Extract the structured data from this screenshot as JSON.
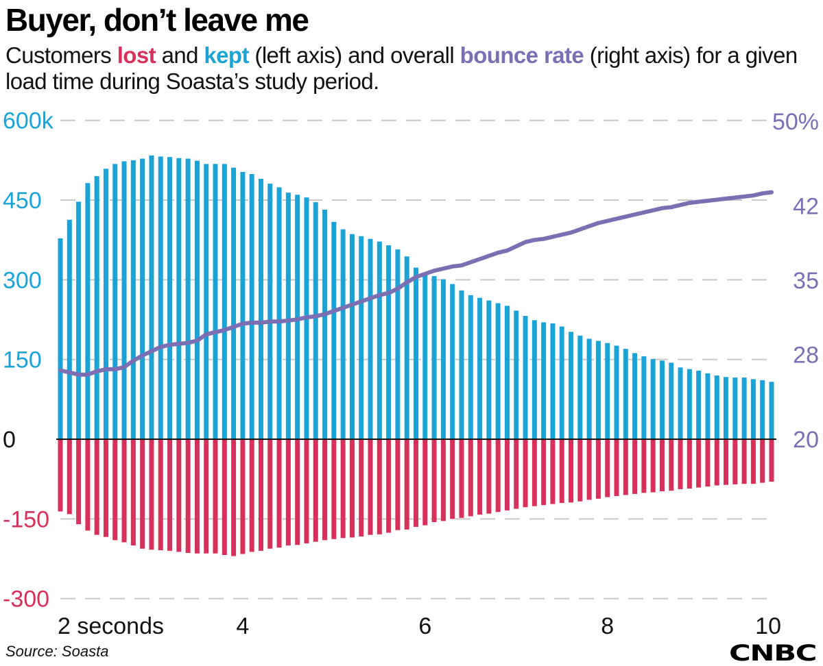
{
  "title": "Buyer, don’t leave me",
  "subtitle": {
    "p1": "Customers ",
    "lost": "lost",
    "p2": " and ",
    "kept": "kept",
    "p3": " (left axis) and overall ",
    "bounce": "bounce rate",
    "p4": " (right axis) for a given load time during Soasta’s study period."
  },
  "colors": {
    "kept": "#1aa3d4",
    "lost": "#d7305a",
    "bounce": "#7b6fb3",
    "left_axis_positive": "#1aa3d4",
    "left_axis_negative": "#d7305a"
  },
  "source": "Source: Soasta",
  "logo": "CNBC",
  "chart_data": {
    "type": "bar",
    "x_start": 2.0,
    "x_step": 0.1,
    "left_axis": {
      "ylim": [
        -300,
        600
      ],
      "ticks": [
        600,
        450,
        300,
        150,
        0,
        -150,
        -300
      ],
      "tick_labels": [
        "600k",
        "450",
        "300",
        "150",
        "0",
        "-150",
        "-300"
      ]
    },
    "right_axis": {
      "ylim": [
        20,
        50
      ],
      "ticks": [
        50,
        42,
        35,
        28,
        20
      ],
      "tick_labels": [
        "50%",
        "42",
        "35",
        "28",
        "20"
      ]
    },
    "x_axis": {
      "ticks": [
        2,
        4,
        6,
        8,
        10
      ],
      "tick_labels": [
        "2 seconds",
        "4",
        "6",
        "8",
        "10"
      ]
    },
    "grid": true,
    "series": [
      {
        "name": "kept",
        "axis": "left",
        "type": "bar",
        "values": [
          378,
          413,
          447,
          482,
          495,
          509,
          518,
          523,
          525,
          528,
          534,
          532,
          531,
          529,
          528,
          524,
          518,
          518,
          518,
          511,
          503,
          499,
          490,
          481,
          474,
          464,
          460,
          455,
          446,
          432,
          409,
          395,
          386,
          382,
          377,
          372,
          365,
          357,
          344,
          323,
          314,
          307,
          301,
          292,
          280,
          271,
          266,
          261,
          256,
          251,
          242,
          232,
          224,
          220,
          218,
          212,
          202,
          195,
          189,
          185,
          181,
          176,
          170,
          162,
          156,
          151,
          148,
          144,
          135,
          132,
          129,
          124,
          120,
          117,
          116,
          116,
          113,
          111,
          108
        ]
      },
      {
        "name": "lost",
        "axis": "left",
        "type": "bar",
        "values": [
          -136,
          -141,
          -160,
          -172,
          -180,
          -184,
          -190,
          -194,
          -200,
          -206,
          -208,
          -209,
          -210,
          -212,
          -214,
          -215,
          -215,
          -215,
          -218,
          -220,
          -216,
          -212,
          -210,
          -206,
          -204,
          -200,
          -199,
          -196,
          -193,
          -190,
          -188,
          -186,
          -185,
          -183,
          -180,
          -179,
          -176,
          -171,
          -170,
          -165,
          -162,
          -156,
          -154,
          -150,
          -148,
          -145,
          -142,
          -140,
          -137,
          -134,
          -131,
          -128,
          -126,
          -124,
          -122,
          -120,
          -119,
          -117,
          -114,
          -112,
          -109,
          -107,
          -105,
          -103,
          -101,
          -100,
          -98,
          -97,
          -94,
          -93,
          -91,
          -89,
          -87,
          -86,
          -85,
          -84,
          -84,
          -82,
          -80
        ]
      },
      {
        "name": "bounce rate",
        "axis": "right",
        "type": "line",
        "values": [
          26.5,
          26.3,
          26.1,
          26.1,
          26.4,
          26.6,
          26.6,
          26.8,
          27.4,
          27.9,
          28.3,
          28.7,
          28.9,
          29.0,
          29.1,
          29.3,
          29.9,
          30.1,
          30.3,
          30.6,
          30.9,
          31.0,
          31.0,
          31.1,
          31.1,
          31.2,
          31.3,
          31.5,
          31.6,
          31.8,
          32.1,
          32.4,
          32.7,
          33.0,
          33.3,
          33.6,
          33.8,
          34.2,
          34.8,
          35.3,
          35.6,
          35.9,
          36.1,
          36.3,
          36.4,
          36.7,
          37.0,
          37.3,
          37.6,
          37.8,
          38.2,
          38.6,
          38.8,
          38.9,
          39.1,
          39.3,
          39.5,
          39.8,
          40.1,
          40.4,
          40.6,
          40.8,
          41.0,
          41.2,
          41.4,
          41.6,
          41.8,
          41.9,
          42.1,
          42.3,
          42.4,
          42.5,
          42.6,
          42.7,
          42.8,
          42.9,
          43.0,
          43.2,
          43.3
        ]
      }
    ]
  }
}
